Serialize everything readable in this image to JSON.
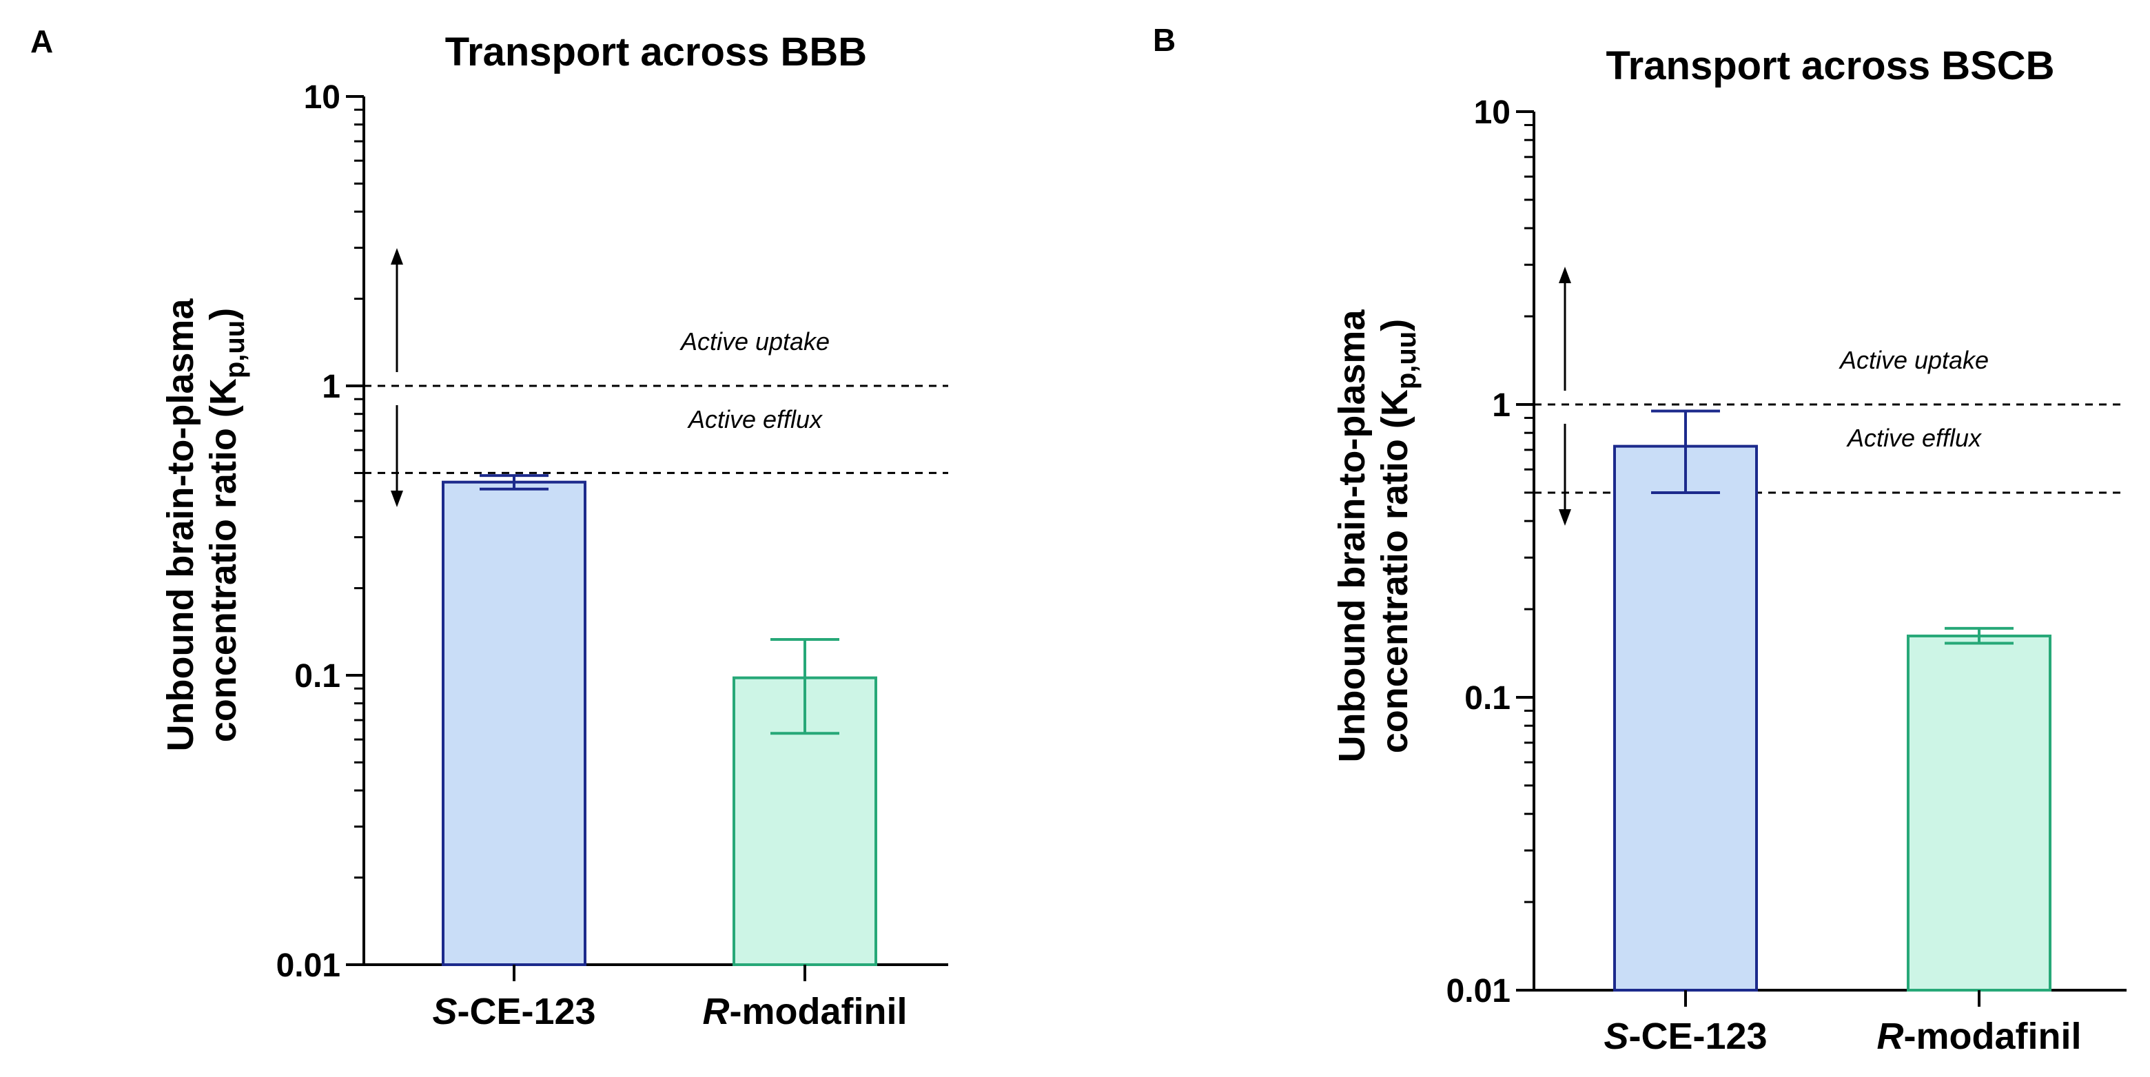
{
  "chart_data": [
    {
      "type": "bar",
      "panel": "A",
      "title": "Transport across BBB",
      "xlabel": "",
      "ylabel": "Unbound brain-to-plasma concentratio ratio (Kp,uu)",
      "ylabel_line1": "Unbound brain-to-plasma",
      "ylabel_line2_main": "concentratio ratio (K",
      "ylabel_line2_sub": "p,uu",
      "ylabel_line2_end": ")",
      "yscale": "log",
      "ylim": [
        0.01,
        10
      ],
      "yticks": [
        0.01,
        0.1,
        1,
        10
      ],
      "ytick_labels": [
        "0.01",
        "0.1",
        "1",
        "10"
      ],
      "categories": [
        "S-CE-123",
        "R-modafinil"
      ],
      "category_prefix": [
        "S",
        "R"
      ],
      "category_suffix": [
        "-CE-123",
        "-modafinil"
      ],
      "values": [
        0.465,
        0.098
      ],
      "error_low": [
        0.44,
        0.063
      ],
      "error_high": [
        0.49,
        0.133
      ],
      "bar_fill": [
        "#c9ddf7",
        "#cdf5e6"
      ],
      "bar_stroke": [
        "#1c2a8c",
        "#27a878"
      ],
      "reference_lines": [
        1,
        0.5
      ],
      "annotations": [
        "Active uptake",
        "Active efflux"
      ]
    },
    {
      "type": "bar",
      "panel": "B",
      "title": "Transport across BSCB",
      "xlabel": "",
      "ylabel": "Unbound brain-to-plasma concentratio ratio (Kp,uu)",
      "ylabel_line1": "Unbound brain-to-plasma",
      "ylabel_line2_main": "concentratio ratio (K",
      "ylabel_line2_sub": "p,uu",
      "ylabel_line2_end": ")",
      "yscale": "log",
      "ylim": [
        0.01,
        10
      ],
      "yticks": [
        0.01,
        0.1,
        1,
        10
      ],
      "ytick_labels": [
        "0.01",
        "0.1",
        "1",
        "10"
      ],
      "categories": [
        "S-CE-123",
        "R-modafinil"
      ],
      "category_prefix": [
        "S",
        "R"
      ],
      "category_suffix": [
        "-CE-123",
        "-modafinil"
      ],
      "values": [
        0.72,
        0.162
      ],
      "error_low": [
        0.5,
        0.153
      ],
      "error_high": [
        0.95,
        0.172
      ],
      "bar_fill": [
        "#c9ddf7",
        "#cdf5e6"
      ],
      "bar_stroke": [
        "#1c2a8c",
        "#27a878"
      ],
      "reference_lines": [
        1,
        0.5
      ],
      "annotations": [
        "Active uptake",
        "Active efflux"
      ]
    }
  ]
}
